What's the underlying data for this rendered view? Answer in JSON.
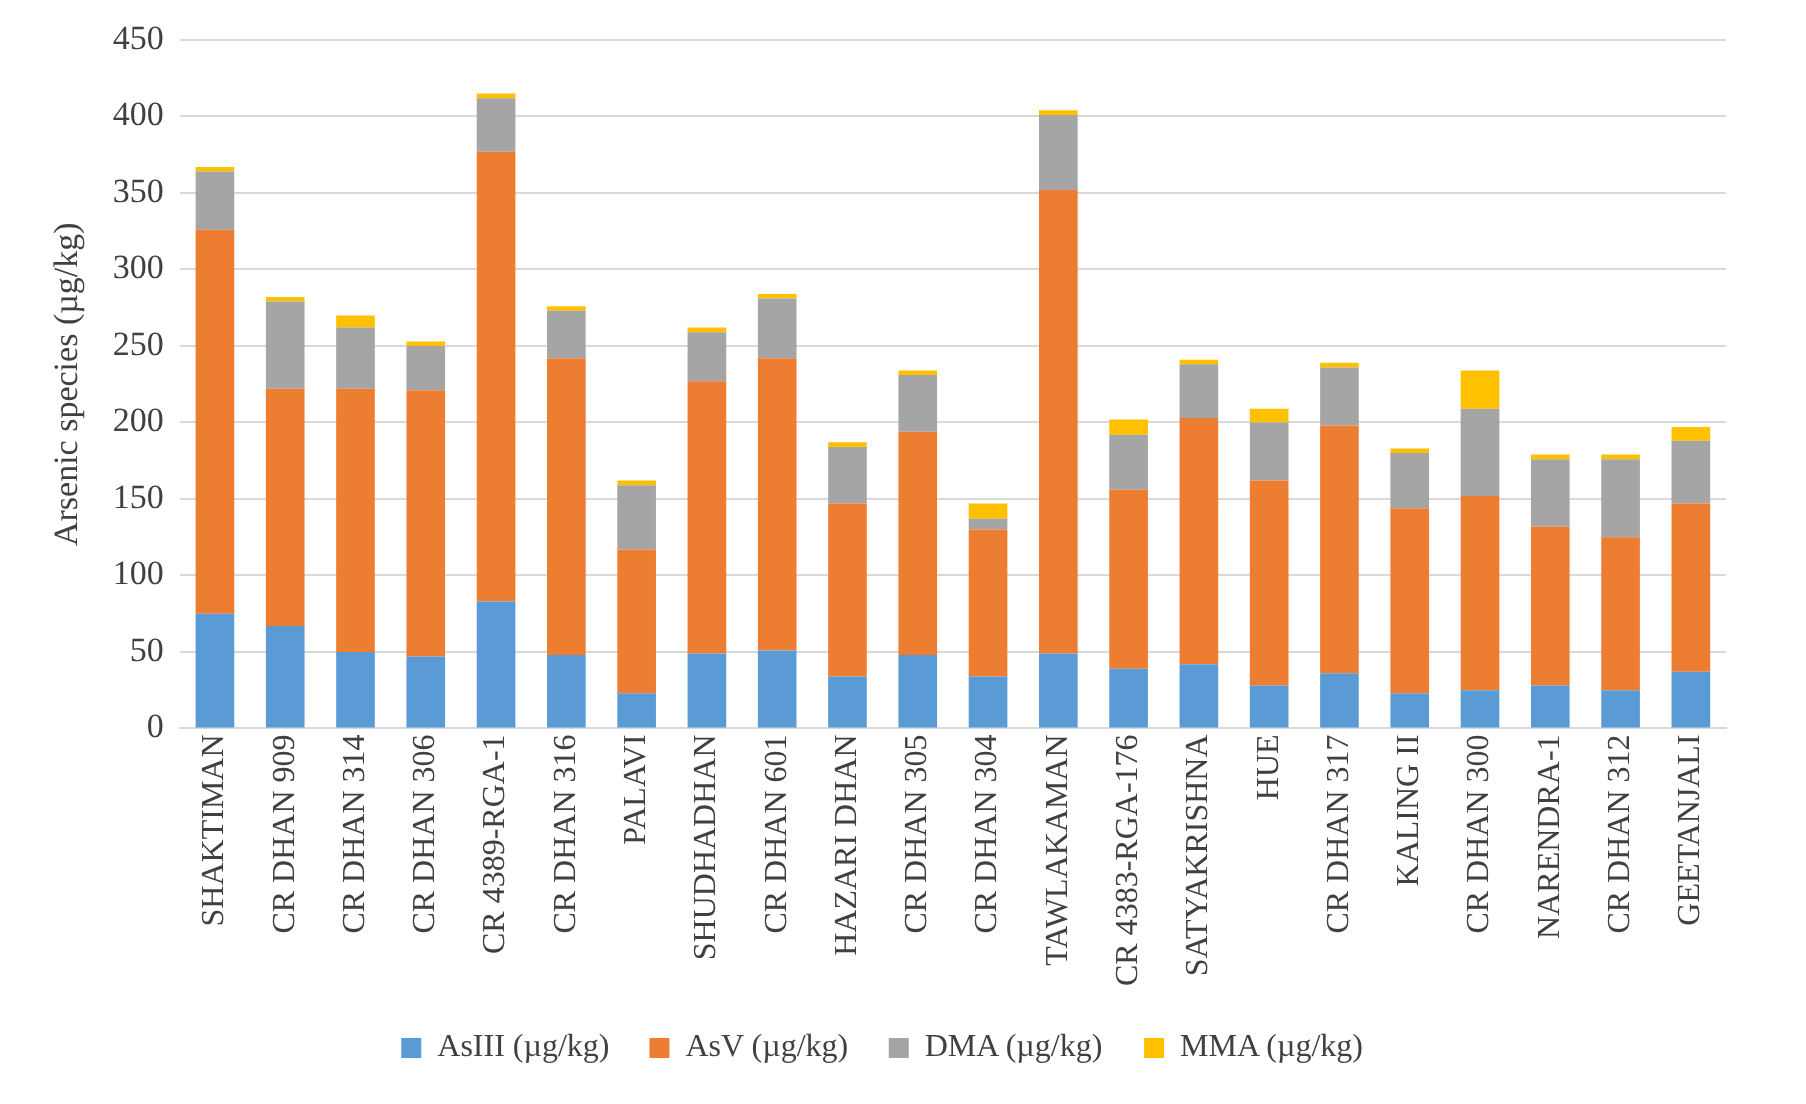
{
  "chart_data": {
    "type": "bar",
    "stacked": true,
    "ylabel": "Arsenic species (µg/kg)",
    "categories": [
      "SHAKTIMAN",
      "CR DHAN 909",
      "CR DHAN 314",
      "CR DHAN 306",
      "CR 4389-RGA-1",
      "CR DHAN 316",
      "PALAVI",
      "SHUDHADHAN",
      "CR DHAN 601",
      "HAZARI DHAN",
      "CR DHAN 305",
      "CR DHAN 304",
      "TAWLAKAMAN",
      "CR 4383-RGA-176",
      "SATYAKRISHNA",
      "HUE",
      "CR DHAN 317",
      "KALING II",
      "CR DHAN 300",
      "NARENDRA-1",
      "CR DHAN 312",
      "GEETANJALI"
    ],
    "series": [
      {
        "name": "AsIII (µg/kg)",
        "color": "#5b9bd5",
        "values": [
          75,
          67,
          50,
          47,
          83,
          48,
          23,
          49,
          51,
          34,
          48,
          34,
          49,
          39,
          42,
          28,
          36,
          23,
          25,
          28,
          25,
          37
        ]
      },
      {
        "name": "AsV (µg/kg)",
        "color": "#ed7d31",
        "values": [
          251,
          155,
          172,
          174,
          294,
          194,
          94,
          178,
          191,
          113,
          146,
          96,
          303,
          117,
          161,
          134,
          162,
          121,
          127,
          104,
          100,
          110
        ]
      },
      {
        "name": "DMA (µg/kg)",
        "color": "#a5a5a5",
        "values": [
          38,
          57,
          40,
          29,
          35,
          31,
          42,
          32,
          39,
          37,
          37,
          7,
          49,
          36,
          35,
          38,
          38,
          36,
          57,
          44,
          51,
          41
        ]
      },
      {
        "name": "MMA (µg/kg)",
        "color": "#ffc000",
        "values": [
          3,
          3,
          8,
          3,
          3,
          3,
          3,
          3,
          3,
          3,
          3,
          10,
          3,
          10,
          3,
          9,
          3,
          3,
          25,
          3,
          3,
          9
        ]
      }
    ],
    "ylim": [
      0,
      450
    ],
    "yticks": [
      0,
      50,
      100,
      150,
      200,
      250,
      300,
      350,
      400,
      450
    ],
    "grid": "y",
    "legend": "bottom"
  }
}
